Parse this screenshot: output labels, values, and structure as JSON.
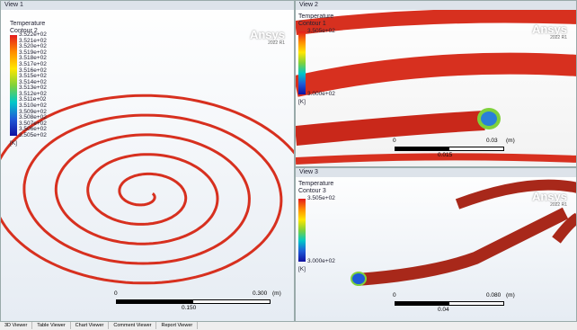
{
  "views": [
    {
      "title": "View 1",
      "legend": {
        "variable": "Temperature",
        "name": "Contour 2",
        "levels": [
          "3.522e+02",
          "3.521e+02",
          "3.520e+02",
          "3.519e+02",
          "3.518e+02",
          "3.517e+02",
          "3.516e+02",
          "3.515e+02",
          "3.514e+02",
          "3.513e+02",
          "3.512e+02",
          "3.511e+02",
          "3.510e+02",
          "3.509e+02",
          "3.508e+02",
          "3.507e+02",
          "3.506e+02",
          "3.505e+02"
        ],
        "unit": "[K]"
      },
      "brand": "Ansys",
      "version": "2022 R1",
      "scale": {
        "start": "0",
        "end": "0.300",
        "unit": "(m)",
        "mid": "0.150"
      }
    },
    {
      "title": "View 2",
      "legend": {
        "variable": "Temperature",
        "name": "Contour 1",
        "levels": [
          "3.505e+02",
          "3.000e+02"
        ],
        "unit": "[K]"
      },
      "brand": "Ansys",
      "version": "2022 R1",
      "scale": {
        "start": "0",
        "end": "0.03",
        "unit": "(m)",
        "mid": "0.015"
      }
    },
    {
      "title": "View 3",
      "legend": {
        "variable": "Temperature",
        "name": "Contour 3",
        "levels": [
          "3.505e+02",
          "3.000e+02"
        ],
        "unit": "[K]"
      },
      "brand": "Ansys",
      "version": "2022 R1",
      "scale": {
        "start": "0",
        "end": "0.080",
        "unit": "(m)",
        "mid": "0.04"
      }
    }
  ],
  "tabs": [
    "3D Viewer",
    "Table Viewer",
    "Chart Viewer",
    "Comment Viewer",
    "Report Viewer"
  ]
}
